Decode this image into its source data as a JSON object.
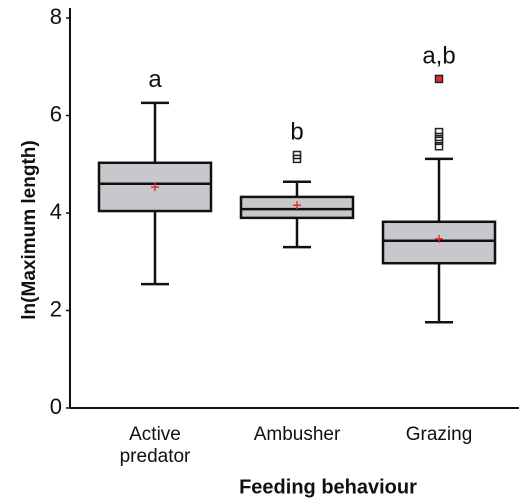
{
  "chart_data": {
    "type": "box",
    "ylabel": "ln(Maximum length)",
    "xlabel": "Feeding behaviour",
    "categories": [
      "Active predator",
      "Ambusher",
      "Grazing"
    ],
    "ylim": [
      0,
      8
    ],
    "yticks": [
      0,
      2,
      4,
      6,
      8
    ],
    "color": "#c8c8cc",
    "mean_color": "#e03030",
    "boxes": [
      {
        "min": 2.54,
        "q1": 4.04,
        "median": 4.6,
        "q3": 5.03,
        "max": 6.26,
        "mean": 4.53,
        "outliers": [],
        "letter": "a"
      },
      {
        "min": 3.3,
        "q1": 3.9,
        "median": 4.08,
        "q3": 4.33,
        "max": 4.64,
        "mean": 4.16,
        "outliers": [
          5.11,
          5.19
        ],
        "letter": "b"
      },
      {
        "min": 1.76,
        "q1": 2.97,
        "median": 3.43,
        "q3": 3.82,
        "max": 5.11,
        "mean": 3.47,
        "outliers": [
          5.37,
          5.48,
          5.56,
          5.66,
          6.75
        ],
        "letter": "a,b"
      }
    ]
  }
}
